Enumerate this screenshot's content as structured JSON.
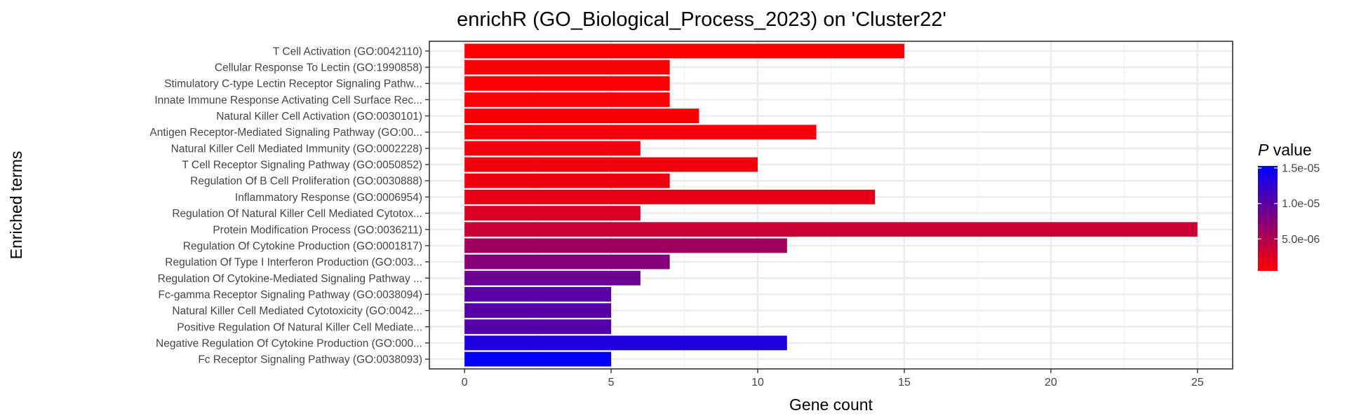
{
  "chart_data": {
    "type": "bar",
    "orientation": "horizontal",
    "title": "enrichR (GO_Biological_Process_2023) on 'Cluster22'",
    "xlabel": "Gene count",
    "ylabel": "Enriched terms",
    "xlim": [
      -1.2,
      26.2
    ],
    "xticks": [
      0,
      5,
      10,
      15,
      20,
      25
    ],
    "grid": true,
    "legend": {
      "title_italic": "P",
      "title_rest": " value",
      "placement": "right",
      "colors": {
        "low": "#FF0000",
        "high": "#0000FF"
      },
      "range": [
        5e-07,
        1.53e-05
      ],
      "ticks": [
        {
          "value": 1.5e-05,
          "label": "1.5e-05"
        },
        {
          "value": 1e-05,
          "label": "1.0e-05"
        },
        {
          "value": 5e-06,
          "label": "5.0e-06"
        }
      ]
    },
    "categories": [
      "T Cell Activation (GO:0042110)",
      "Cellular Response To Lectin (GO:1990858)",
      "Stimulatory C-type Lectin Receptor Signaling Pathw...",
      "Innate Immune Response Activating Cell Surface Rec...",
      "Natural Killer Cell Activation (GO:0030101)",
      "Antigen Receptor-Mediated Signaling Pathway (GO:00...",
      "Natural Killer Cell Mediated Immunity (GO:0002228)",
      "T Cell Receptor Signaling Pathway (GO:0050852)",
      "Regulation Of B Cell Proliferation (GO:0030888)",
      "Inflammatory Response (GO:0006954)",
      "Regulation Of Natural Killer Cell Mediated Cytotox...",
      "Protein Modification Process (GO:0036211)",
      "Regulation Of Cytokine Production (GO:0001817)",
      "Regulation Of Type I Interferon Production (GO:003...",
      "Regulation Of Cytokine-Mediated Signaling Pathway ...",
      "Fc-gamma Receptor Signaling Pathway (GO:0038094)",
      "Natural Killer Cell Mediated Cytotoxicity (GO:0042...",
      "Positive Regulation Of Natural Killer Cell Mediate...",
      "Negative Regulation Of Cytokine Production (GO:000...",
      "Fc Receptor Signaling Pathway (GO:0038093)"
    ],
    "values": [
      15,
      7,
      7,
      7,
      8,
      12,
      6,
      10,
      7,
      14,
      6,
      25,
      11,
      7,
      6,
      5,
      5,
      5,
      11,
      5
    ],
    "pvalues": [
      5e-07,
      7e-07,
      7e-07,
      7e-07,
      8e-07,
      1e-06,
      1.2e-06,
      1.3e-06,
      1.5e-06,
      1.8e-06,
      2.5e-06,
      3.5e-06,
      6e-06,
      7.5e-06,
      9e-06,
      1e-05,
      1.02e-05,
      1.04e-05,
      1.35e-05,
      1.53e-05
    ]
  }
}
